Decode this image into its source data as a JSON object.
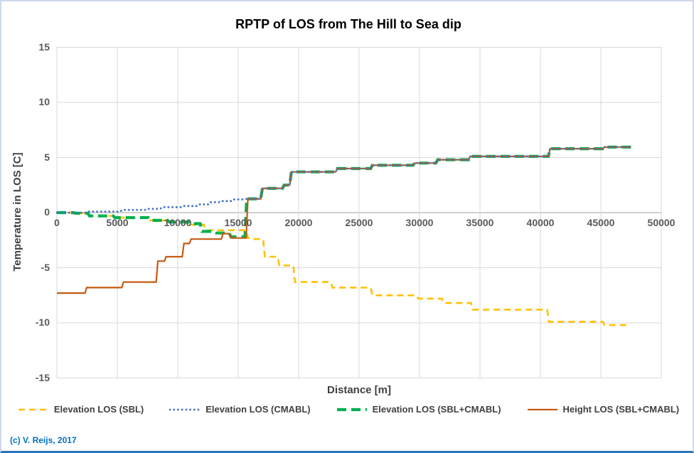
{
  "footer": {
    "copyright": "(c) V. Reijs, 2017"
  },
  "chart_data": {
    "type": "line",
    "title": "RPTP of LOS from The Hill to Sea dip",
    "xlabel": "Distance [m]",
    "ylabel": "Temperature in LOS [C]",
    "xlim": [
      0,
      50000
    ],
    "ylim": [
      -15,
      15
    ],
    "x_ticks": [
      0,
      5000,
      10000,
      15000,
      20000,
      25000,
      30000,
      35000,
      40000,
      45000,
      50000
    ],
    "y_ticks": [
      15,
      10,
      5,
      0,
      -5,
      -10,
      -15
    ],
    "grid": true,
    "legend_position": "bottom",
    "interpolation": "step-after",
    "colors": {
      "gridline": "#D9D9D9",
      "zero_axis": "#BFBFBF",
      "tick_label": "#595959",
      "axis_title": "#404040",
      "legend_text": "#404040",
      "copyright": "#0070C0"
    },
    "series": [
      {
        "name": "Elevation LOS (SBL)",
        "color": "#FFC000",
        "style": "dashed",
        "width": 2.6,
        "x": [
          0,
          1500,
          2700,
          4800,
          7700,
          9300,
          11000,
          12300,
          15800,
          16100,
          17200,
          18400,
          19700,
          22800,
          26100,
          29900,
          32000,
          34400,
          40700,
          45300,
          47400
        ],
        "y": [
          0,
          -0.05,
          -0.3,
          -0.45,
          -0.7,
          -0.85,
          -1.1,
          -1.6,
          -2.3,
          -2.4,
          -4.0,
          -4.8,
          -6.3,
          -6.8,
          -7.5,
          -7.8,
          -8.2,
          -8.8,
          -9.9,
          -10.2,
          -10.2
        ]
      },
      {
        "name": "Elevation LOS (CMABL)",
        "color": "#4472C4",
        "style": "dotted",
        "width": 2.8,
        "x": [
          0,
          2500,
          5400,
          7500,
          8700,
          10500,
          11800,
          12700,
          13600,
          14600,
          15700,
          17000,
          18800,
          19400,
          23200,
          26100,
          29600,
          31500,
          34200,
          40800,
          45300,
          47500
        ],
        "y": [
          0,
          0.1,
          0.25,
          0.35,
          0.5,
          0.6,
          0.75,
          0.95,
          1.05,
          1.2,
          1.25,
          2.2,
          2.5,
          3.7,
          4.0,
          4.3,
          4.5,
          4.8,
          5.1,
          5.8,
          5.95,
          5.95
        ]
      },
      {
        "name": "Elevation LOS (SBL+CMABL)",
        "color": "#00B050",
        "style": "long-dash",
        "width": 4.2,
        "x": [
          0,
          1500,
          2700,
          4800,
          7700,
          9300,
          11000,
          12000,
          13200,
          14400,
          15700,
          17000,
          18800,
          19400,
          23200,
          26100,
          29600,
          31500,
          34200,
          40800,
          45300,
          47500
        ],
        "y": [
          0,
          -0.05,
          -0.3,
          -0.45,
          -0.7,
          -0.85,
          -1.0,
          -1.7,
          -1.85,
          -2.2,
          1.25,
          2.2,
          2.5,
          3.7,
          4.0,
          4.3,
          4.5,
          4.8,
          5.1,
          5.8,
          5.95,
          5.95
        ]
      },
      {
        "name": "Height LOS (SBL+CMABL)",
        "color": "#C55A11",
        "style": "solid",
        "width": 2.2,
        "x": [
          0,
          2470,
          5510,
          8350,
          9040,
          10510,
          11100,
          13740,
          14400,
          15800,
          17000,
          18800,
          19400,
          23200,
          26100,
          29600,
          31500,
          34200,
          40800,
          45300,
          47500
        ],
        "y": [
          -7.3,
          -6.8,
          -6.3,
          -4.4,
          -4.0,
          -2.8,
          -2.4,
          -1.9,
          -2.3,
          1.25,
          2.2,
          2.5,
          3.7,
          4.0,
          4.3,
          4.5,
          4.8,
          5.1,
          5.8,
          5.95,
          5.95
        ]
      }
    ],
    "draw_order": [
      0,
      2,
      3,
      1
    ]
  }
}
